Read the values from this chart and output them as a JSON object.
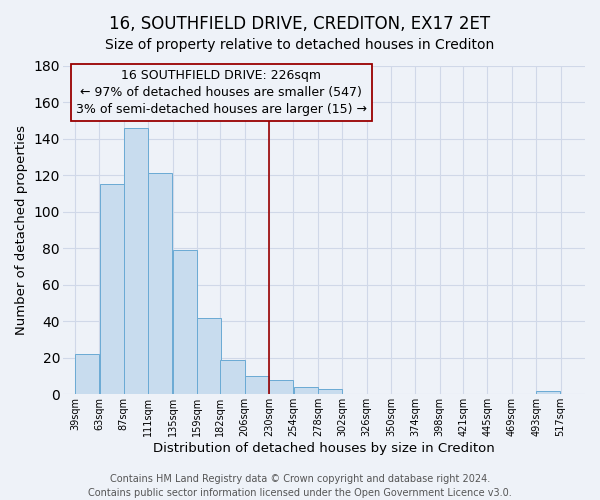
{
  "title": "16, SOUTHFIELD DRIVE, CREDITON, EX17 2ET",
  "subtitle": "Size of property relative to detached houses in Crediton",
  "xlabel": "Distribution of detached houses by size in Crediton",
  "ylabel": "Number of detached properties",
  "bar_left_edges": [
    39,
    63,
    87,
    111,
    135,
    159,
    182,
    206,
    230,
    254,
    278,
    302,
    326,
    350,
    374,
    398,
    421,
    445,
    469,
    493
  ],
  "bar_heights": [
    22,
    115,
    146,
    121,
    79,
    42,
    19,
    10,
    8,
    4,
    3,
    0,
    0,
    0,
    0,
    0,
    0,
    0,
    0,
    2
  ],
  "bar_widths": [
    24,
    24,
    24,
    24,
    24,
    24,
    24,
    24,
    24,
    24,
    24,
    24,
    24,
    24,
    24,
    24,
    23,
    24,
    24,
    24
  ],
  "bar_color": "#c8dcee",
  "bar_edge_color": "#6aaad4",
  "tick_labels": [
    "39sqm",
    "63sqm",
    "87sqm",
    "111sqm",
    "135sqm",
    "159sqm",
    "182sqm",
    "206sqm",
    "230sqm",
    "254sqm",
    "278sqm",
    "302sqm",
    "326sqm",
    "350sqm",
    "374sqm",
    "398sqm",
    "421sqm",
    "445sqm",
    "469sqm",
    "493sqm",
    "517sqm"
  ],
  "tick_positions": [
    39,
    63,
    87,
    111,
    135,
    159,
    182,
    206,
    230,
    254,
    278,
    302,
    326,
    350,
    374,
    398,
    421,
    445,
    469,
    493,
    517
  ],
  "ylim": [
    0,
    180
  ],
  "xlim_min": 27,
  "xlim_max": 541,
  "property_line_x": 230,
  "property_line_color": "#990000",
  "ann_line1": "16 SOUTHFIELD DRIVE: 226sqm",
  "ann_line2": "← 97% of detached houses are smaller (547)",
  "ann_line3": "3% of semi-detached houses are larger (15) →",
  "footer_line1": "Contains HM Land Registry data © Crown copyright and database right 2024.",
  "footer_line2": "Contains public sector information licensed under the Open Government Licence v3.0.",
  "background_color": "#eef2f8",
  "grid_color": "#d0d8e8",
  "title_fontsize": 12,
  "subtitle_fontsize": 10,
  "axis_label_fontsize": 9.5,
  "tick_fontsize": 7,
  "footer_fontsize": 7,
  "ann_fontsize": 9
}
